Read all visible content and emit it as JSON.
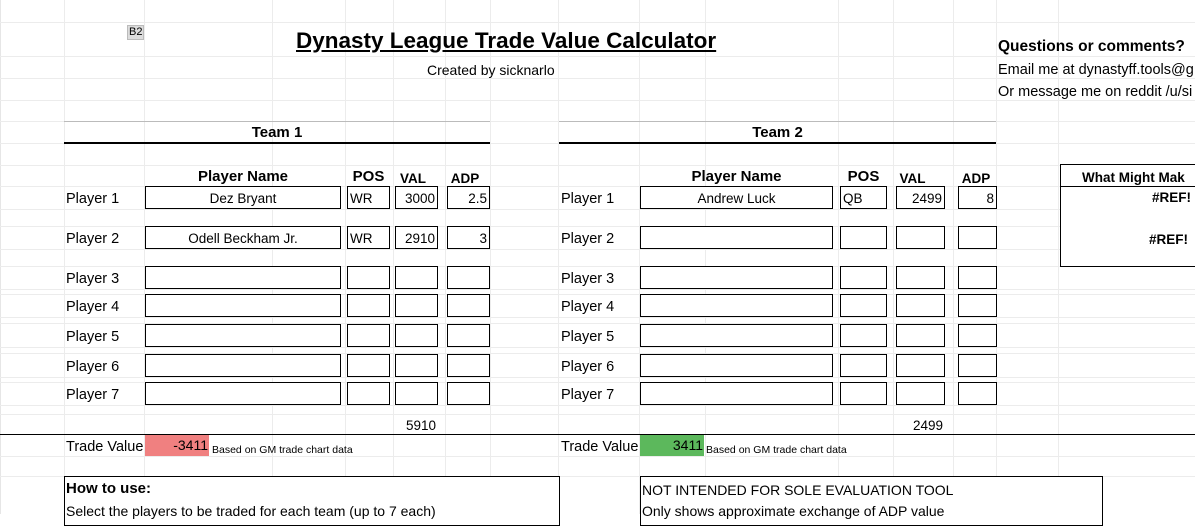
{
  "cell_ref": "B2",
  "title": "Dynasty League Trade Value Calculator",
  "subtitle": "Created by sicknarlo",
  "contact": {
    "heading": "Questions or comments?",
    "line1": "Email me at dynastyff.tools@g",
    "line2": "Or message me on reddit /u/si"
  },
  "columns": {
    "player_name": "Player Name",
    "pos": "POS",
    "val": "VAL",
    "adp": "ADP"
  },
  "team1": {
    "label": "Team 1",
    "rows": [
      {
        "label": "Player 1",
        "name": "Dez Bryant",
        "pos": "WR",
        "val": "3000",
        "adp": "2.5"
      },
      {
        "label": "Player 2",
        "name": "Odell Beckham Jr.",
        "pos": "WR",
        "val": "2910",
        "adp": "3"
      },
      {
        "label": "Player 3",
        "name": "",
        "pos": "",
        "val": "",
        "adp": ""
      },
      {
        "label": "Player 4",
        "name": "",
        "pos": "",
        "val": "",
        "adp": ""
      },
      {
        "label": "Player 5",
        "name": "",
        "pos": "",
        "val": "",
        "adp": ""
      },
      {
        "label": "Player 6",
        "name": "",
        "pos": "",
        "val": "",
        "adp": ""
      },
      {
        "label": "Player 7",
        "name": "",
        "pos": "",
        "val": "",
        "adp": ""
      }
    ],
    "total": "5910",
    "trade_value_label": "Trade Value",
    "trade_value": "-3411",
    "trade_value_color": "#f08080",
    "note": "Based on GM trade chart data"
  },
  "team2": {
    "label": "Team 2",
    "rows": [
      {
        "label": "Player 1",
        "name": "Andrew Luck",
        "pos": "QB",
        "val": "2499",
        "adp": "8"
      },
      {
        "label": "Player 2",
        "name": "",
        "pos": "",
        "val": "",
        "adp": ""
      },
      {
        "label": "Player 3",
        "name": "",
        "pos": "",
        "val": "",
        "adp": ""
      },
      {
        "label": "Player 4",
        "name": "",
        "pos": "",
        "val": "",
        "adp": ""
      },
      {
        "label": "Player 5",
        "name": "",
        "pos": "",
        "val": "",
        "adp": ""
      },
      {
        "label": "Player 6",
        "name": "",
        "pos": "",
        "val": "",
        "adp": ""
      },
      {
        "label": "Player 7",
        "name": "",
        "pos": "",
        "val": "",
        "adp": ""
      }
    ],
    "total": "2499",
    "trade_value_label": "Trade Value",
    "trade_value": "3411",
    "trade_value_color": "#5cb85c",
    "note": "Based on GM trade chart data"
  },
  "side_panel": {
    "heading": "What Might Mak",
    "ref1": "#REF!",
    "ref2": "#REF!"
  },
  "how_to": {
    "heading": "How to use:",
    "line1": "Select the players to be traded for each team (up to 7 each)"
  },
  "disclaimer": {
    "line1": "NOT INTENDED FOR SOLE EVALUATION TOOL",
    "line2": "Only shows approximate exchange of ADP value"
  }
}
